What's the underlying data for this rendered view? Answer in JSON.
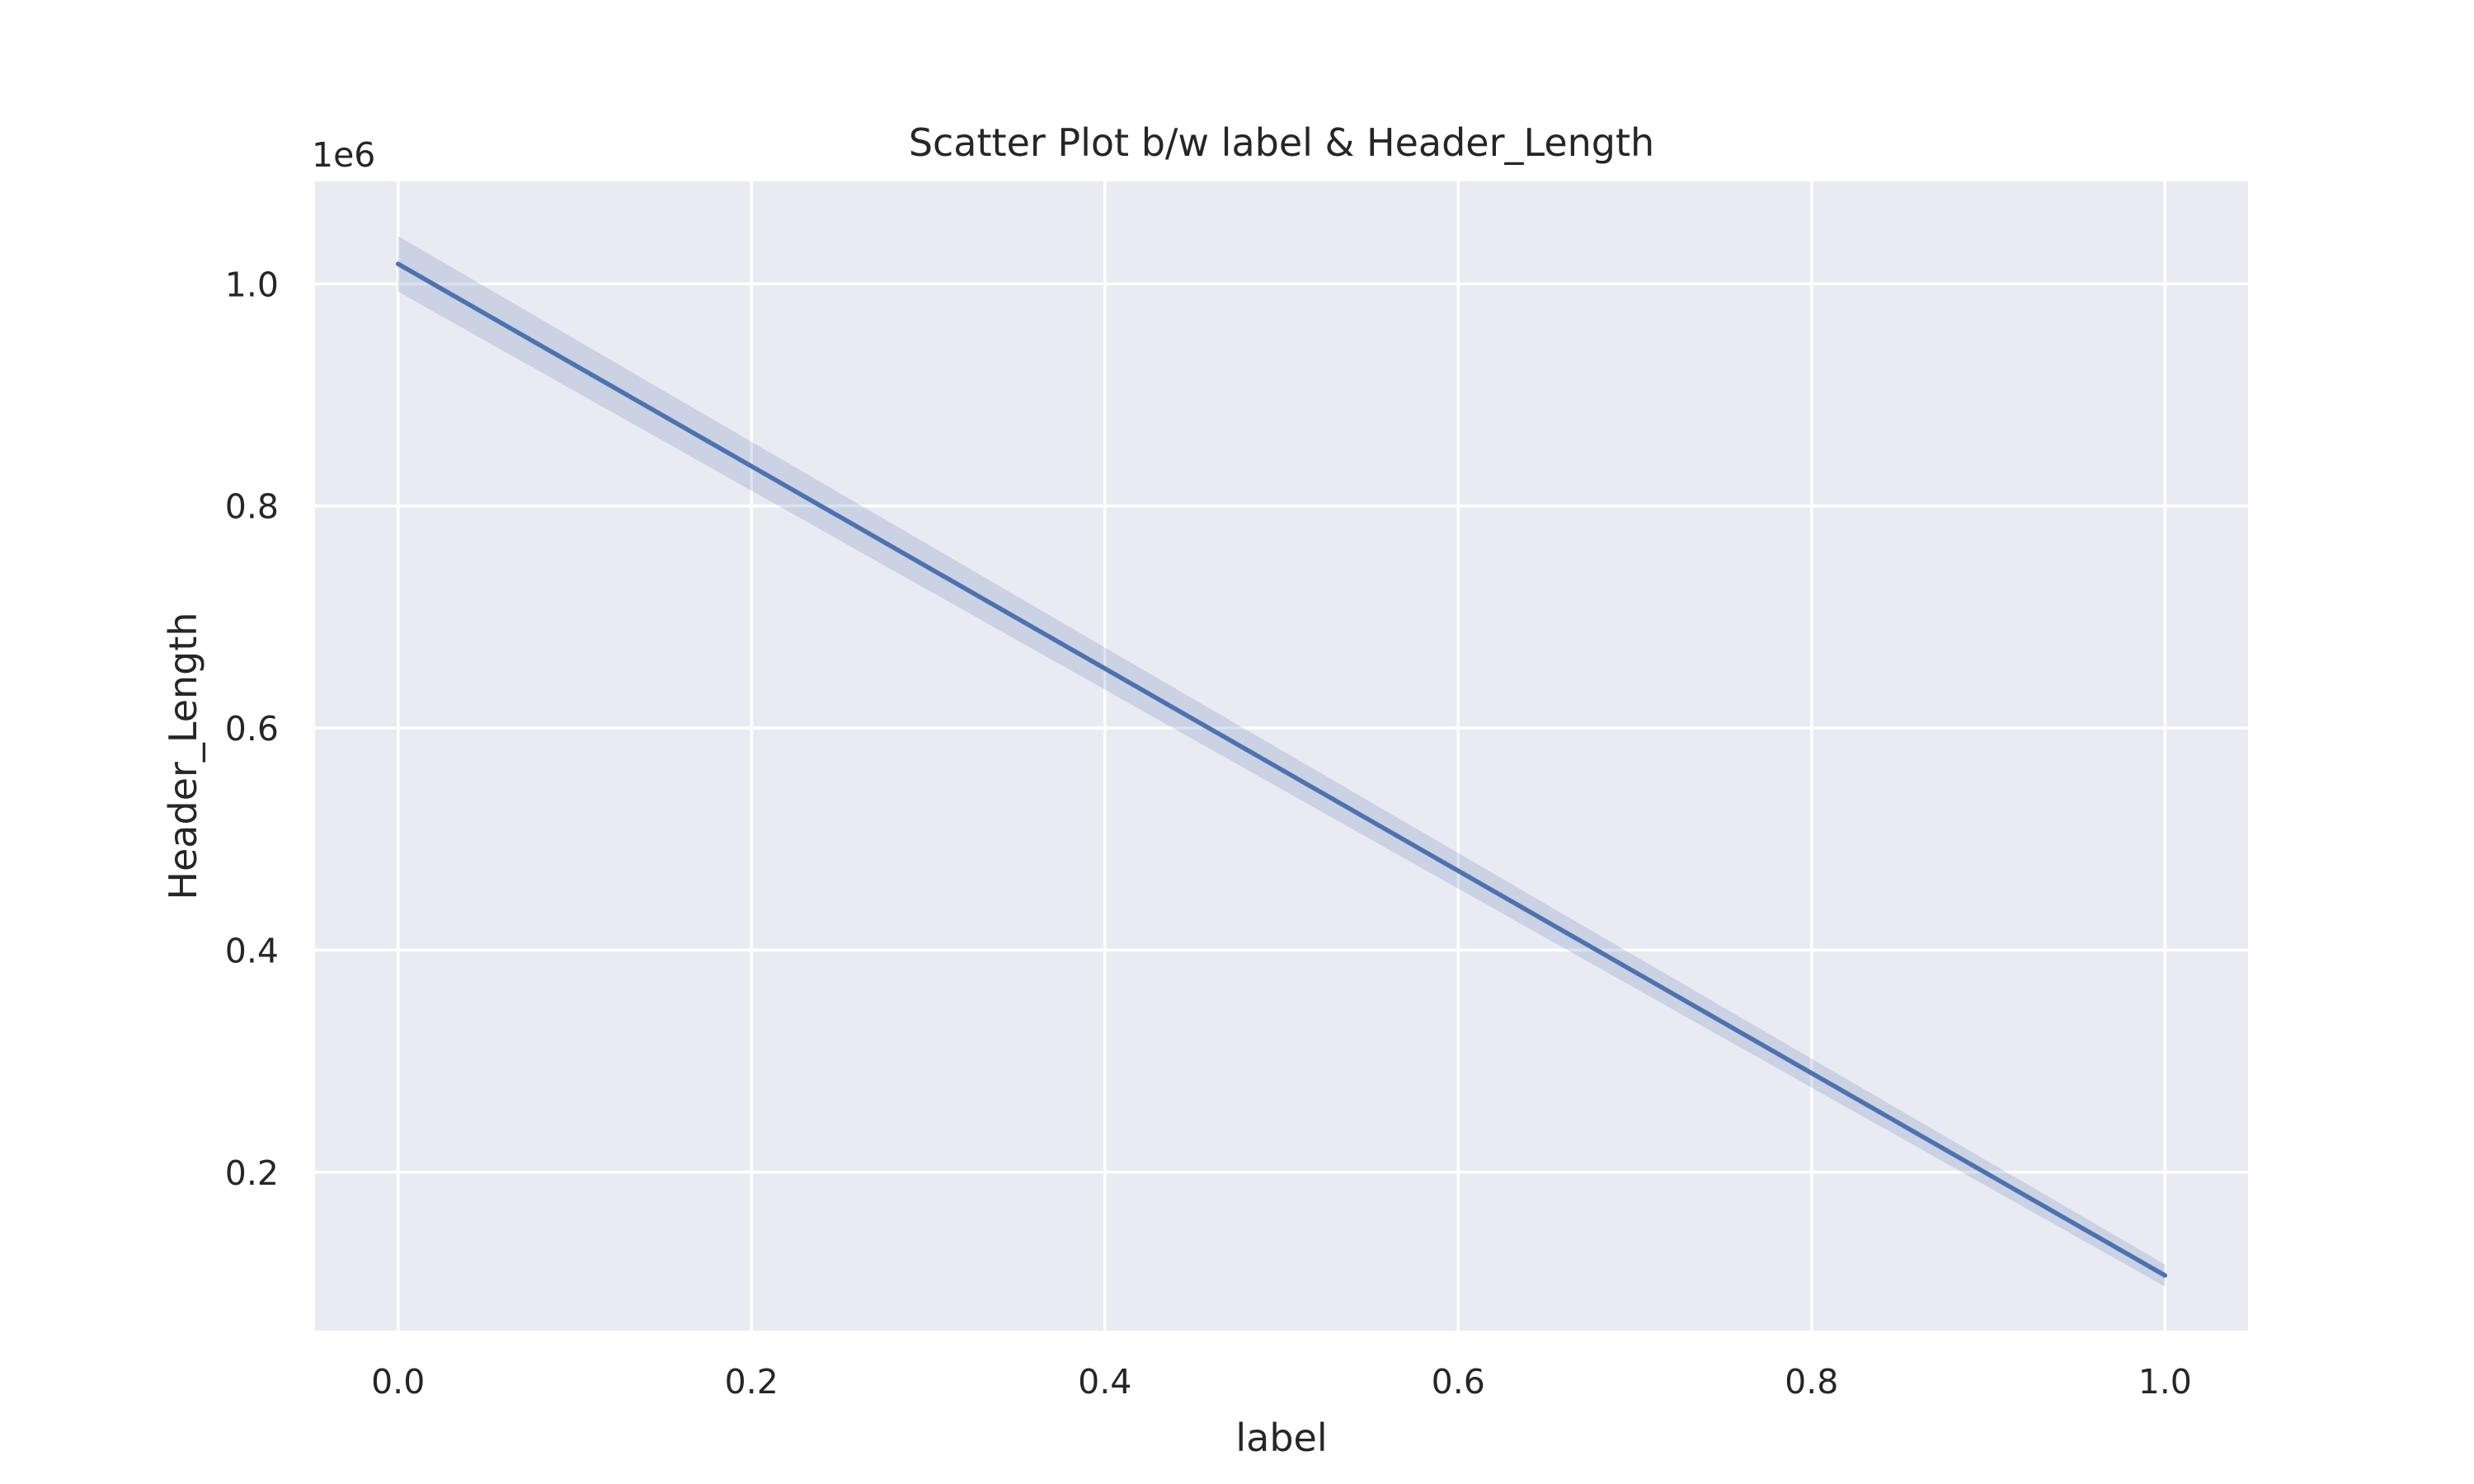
{
  "chart_data": {
    "type": "line",
    "title": "Scatter Plot b/w label & Header_Length",
    "xlabel": "label",
    "ylabel": "Header_Length",
    "y_multiplier_label": "1e6",
    "xlim": [
      -0.047,
      1.047
    ],
    "ylim": [
      0.0573,
      1.0923
    ],
    "x_ticks": [
      0.0,
      0.2,
      0.4,
      0.6,
      0.8,
      1.0
    ],
    "x_tick_labels": [
      "0.0",
      "0.2",
      "0.4",
      "0.6",
      "0.8",
      "1.0"
    ],
    "y_ticks": [
      0.2,
      0.4,
      0.6,
      0.8,
      1.0
    ],
    "y_tick_labels": [
      "0.2",
      "0.4",
      "0.6",
      "0.8",
      "1.0"
    ],
    "grid": true,
    "series": [
      {
        "x": [
          0.0,
          1.0
        ],
        "y": [
          1.018,
          0.107
        ],
        "ci_lower": [
          0.993,
          0.097
        ],
        "ci_upper": [
          1.043,
          0.117
        ]
      }
    ],
    "colors": {
      "line": "#4c72b0",
      "band": "#4c72b0",
      "plot_background": "#eaeaf2",
      "grid": "#ffffff",
      "text": "#262626"
    }
  }
}
